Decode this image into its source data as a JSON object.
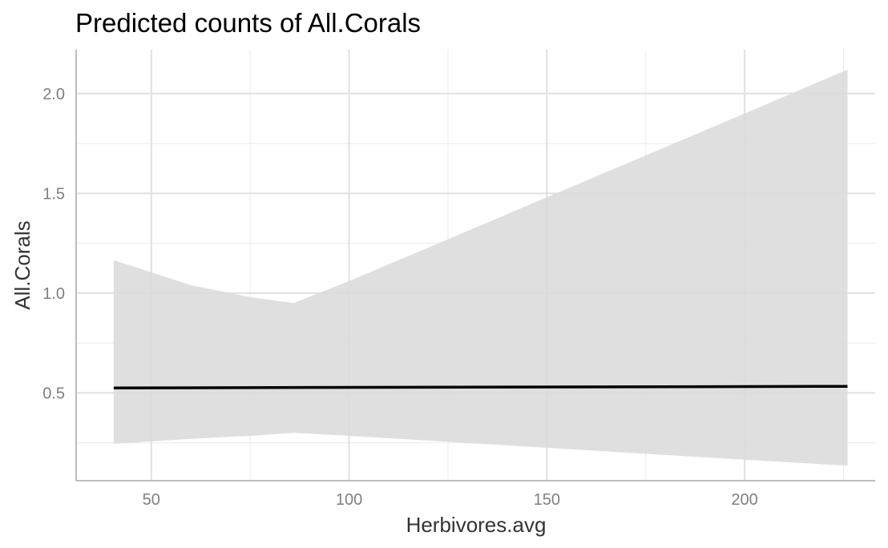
{
  "chart_data": {
    "type": "line",
    "title": "Predicted counts of All.Corals",
    "xlabel": "Herbivores.avg",
    "ylabel": "All.Corals",
    "xlim": [
      31,
      233
    ],
    "ylim": [
      0.06,
      2.22
    ],
    "x_ticks": [
      50,
      100,
      150,
      200
    ],
    "x_tick_labels": [
      "50",
      "100",
      "150",
      "200"
    ],
    "x_minor_ticks": [
      75,
      125,
      175,
      225
    ],
    "y_ticks": [
      0.5,
      1.0,
      1.5,
      2.0
    ],
    "y_tick_labels": [
      "0.5",
      "1.0",
      "1.5",
      "2.0"
    ],
    "y_minor_ticks": [
      0.25,
      0.75,
      1.25,
      1.75
    ],
    "grid": true,
    "series": [
      {
        "x": [
          40.5,
          226
        ],
        "values": [
          0.525,
          0.533
        ],
        "color": "#000000"
      }
    ],
    "confidence_band": {
      "color": "#dcdcdc",
      "x": [
        40.5,
        60,
        75,
        86,
        100,
        125,
        150,
        175,
        200,
        226
      ],
      "upper": [
        1.165,
        1.04,
        0.98,
        0.95,
        1.06,
        1.27,
        1.48,
        1.69,
        1.9,
        2.12
      ],
      "lower": [
        0.245,
        0.27,
        0.285,
        0.3,
        0.285,
        0.255,
        0.225,
        0.195,
        0.165,
        0.135
      ]
    }
  }
}
